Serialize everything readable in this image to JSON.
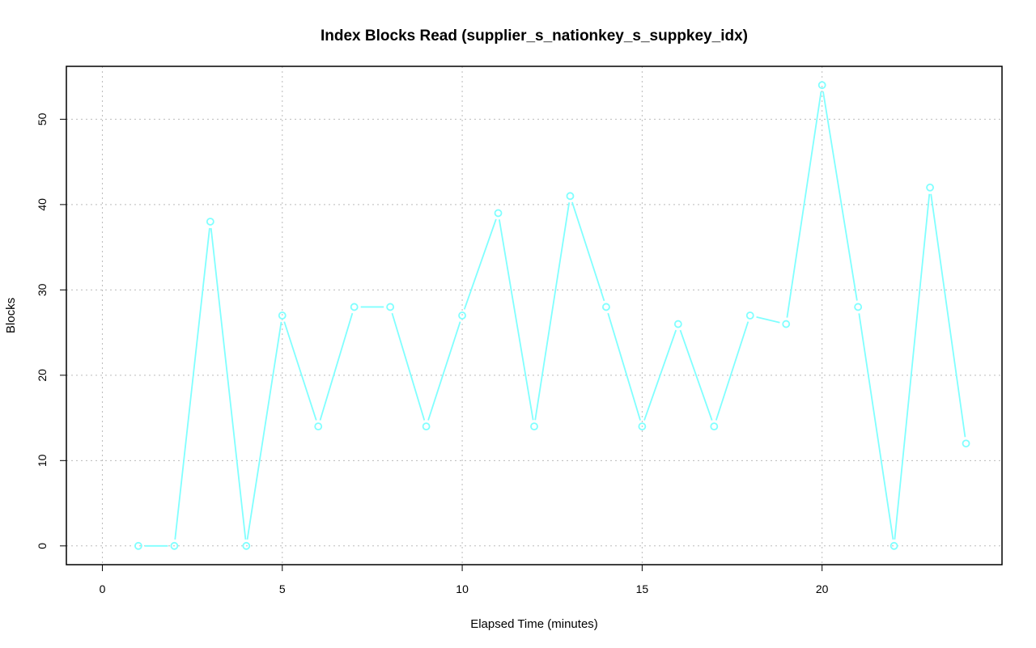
{
  "chart_data": {
    "type": "line",
    "title": "Index Blocks Read (supplier_s_nationkey_s_suppkey_idx)",
    "xlabel": "Elapsed Time (minutes)",
    "ylabel": "Blocks",
    "x": [
      1,
      2,
      3,
      4,
      5,
      6,
      7,
      8,
      9,
      10,
      11,
      12,
      13,
      14,
      15,
      16,
      17,
      18,
      19,
      20,
      21,
      22,
      23,
      24
    ],
    "values": [
      0,
      0,
      38,
      0,
      27,
      14,
      28,
      28,
      14,
      27,
      39,
      14,
      41,
      28,
      14,
      26,
      14,
      27,
      26,
      54,
      28,
      0,
      42,
      12
    ],
    "xticks": [
      0,
      5,
      10,
      15,
      20
    ],
    "yticks": [
      0,
      10,
      20,
      30,
      40,
      50
    ],
    "xlim": [
      -1,
      25
    ],
    "ylim": [
      -2.2,
      56.2
    ],
    "grid": true,
    "color": "#80ffff",
    "markers": "open-circle"
  }
}
